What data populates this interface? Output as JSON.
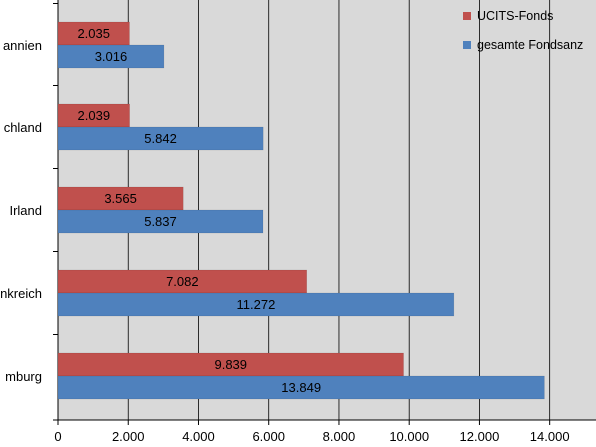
{
  "chart_data": {
    "type": "bar",
    "orientation": "horizontal",
    "categories": [
      "annien",
      "chland",
      "Irland",
      "nkreich",
      "mburg"
    ],
    "series": [
      {
        "name": "UCITS-Fonds",
        "color": "#c0504d",
        "values": [
          2035,
          2039,
          3565,
          7082,
          9839
        ],
        "value_labels": [
          "2.035",
          "2.039",
          "3.565",
          "7.082",
          "9.839"
        ]
      },
      {
        "name": "gesamte Fondsanz",
        "color": "#4f81bd",
        "values": [
          3016,
          5842,
          5837,
          11272,
          13849
        ],
        "value_labels": [
          "3.016",
          "5.842",
          "5.837",
          "11.272",
          "13.849"
        ]
      }
    ],
    "xlim": [
      0,
      16000
    ],
    "x_ticks": [
      0,
      2000,
      4000,
      6000,
      8000,
      10000,
      12000,
      14000
    ],
    "x_tick_labels": [
      "0",
      "2.000",
      "4.000",
      "6.000",
      "8.000",
      "10.000",
      "12.000",
      "14.000"
    ],
    "grid": true,
    "legend": "top-right",
    "plot_background": "#d9d9d9",
    "gridline_color": "#000000"
  }
}
